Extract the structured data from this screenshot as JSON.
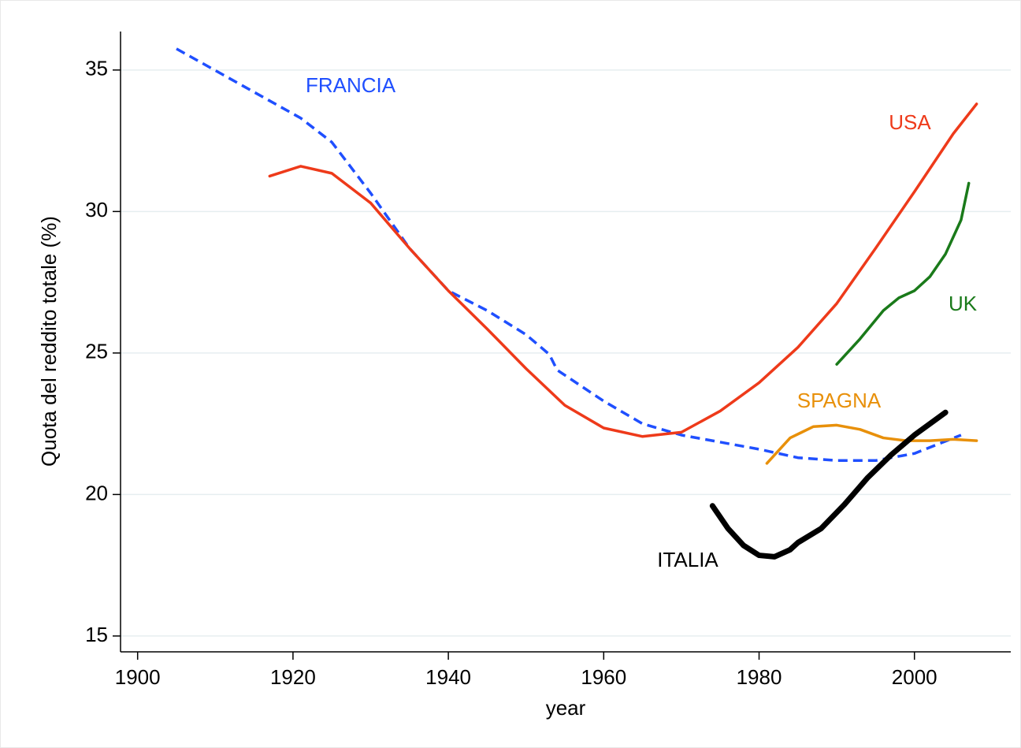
{
  "chart_data": {
    "type": "line",
    "xlabel": "year",
    "ylabel": "Quota del reddito totale (%)",
    "xlim": [
      1897.8,
      2012.4
    ],
    "ylim": [
      14.44,
      36.36
    ],
    "xticks": [
      1900,
      1920,
      1940,
      1960,
      1980,
      2000
    ],
    "yticks": [
      15,
      20,
      25,
      30,
      35
    ],
    "grid": true,
    "series": [
      {
        "name": "FRANCIA",
        "color": "#1f4fff",
        "dashed": true,
        "x": [
          1905,
          1921,
          1925,
          1930,
          1935,
          1940,
          1945,
          1950,
          1953,
          1954,
          1960,
          1965,
          1970,
          1975,
          1980,
          1985,
          1990,
          1995,
          2000,
          2006
        ],
        "values": [
          35.75,
          33.3,
          32.45,
          30.65,
          28.7,
          27.2,
          26.5,
          25.65,
          24.95,
          24.4,
          23.3,
          22.5,
          22.1,
          21.85,
          21.6,
          21.3,
          21.2,
          21.2,
          21.45,
          22.1
        ]
      },
      {
        "name": "USA",
        "color": "#ee3a1a",
        "x": [
          1917,
          1921,
          1925,
          1930,
          1935,
          1940,
          1945,
          1950,
          1955,
          1960,
          1965,
          1970,
          1975,
          1980,
          1985,
          1990,
          1995,
          2000,
          2005,
          2008
        ],
        "values": [
          31.25,
          31.6,
          31.35,
          30.3,
          28.7,
          27.2,
          25.85,
          24.45,
          23.15,
          22.35,
          22.05,
          22.2,
          22.95,
          23.95,
          25.2,
          26.75,
          28.7,
          30.7,
          32.75,
          33.8
        ]
      },
      {
        "name": "UK",
        "color": "#1a7a1a",
        "x": [
          1990,
          1993,
          1996,
          1998,
          2000,
          2002,
          2004,
          2006,
          2007
        ],
        "values": [
          24.6,
          25.5,
          26.5,
          26.95,
          27.2,
          27.7,
          28.5,
          29.7,
          31.0
        ]
      },
      {
        "name": "SPAGNA",
        "color": "#e8900a",
        "x": [
          1981,
          1984,
          1987,
          1990,
          1993,
          1996,
          1999,
          2002,
          2005,
          2008
        ],
        "values": [
          21.1,
          22.0,
          22.4,
          22.45,
          22.3,
          22.0,
          21.9,
          21.9,
          21.95,
          21.9
        ]
      },
      {
        "name": "ITALIA",
        "color": "#000000",
        "thick": true,
        "x": [
          1974,
          1976,
          1978,
          1980,
          1982,
          1984,
          1985,
          1988,
          1991,
          1994,
          1997,
          2000,
          2004
        ],
        "values": [
          19.6,
          18.8,
          18.2,
          17.85,
          17.8,
          18.05,
          18.3,
          18.8,
          19.65,
          20.6,
          21.4,
          22.1,
          22.9
        ]
      }
    ]
  }
}
